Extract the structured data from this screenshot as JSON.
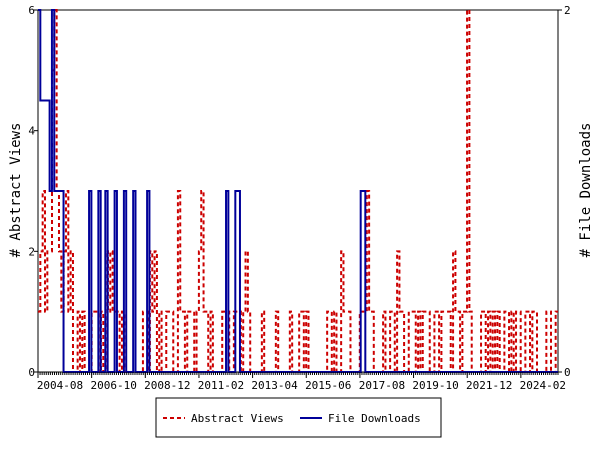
{
  "chart_data": {
    "type": "line",
    "ylabel_left": "# Abstract Views",
    "ylabel_right": "# File Downloads",
    "x_tick_labels": [
      "2004-08",
      "2006-10",
      "2008-12",
      "2011-02",
      "2013-04",
      "2015-06",
      "2017-08",
      "2019-10",
      "2021-12",
      "2024-02"
    ],
    "x_range": [
      "2004-08",
      "2025-08"
    ],
    "ylim_left": [
      0,
      6
    ],
    "yticks_left": [
      "0",
      "2",
      "4",
      "6"
    ],
    "ylim_right": [
      0,
      2
    ],
    "yticks_right": [
      "0",
      "2"
    ],
    "grid": false,
    "legend_position": "bottom-center",
    "series": [
      {
        "name": "Abstract Views",
        "axis": "left",
        "color": "#cc0000",
        "style": "dashed",
        "values": [
          1,
          2,
          3,
          1,
          2,
          2,
          5,
          6,
          3,
          2,
          1,
          2,
          3,
          1,
          2,
          0,
          0,
          1,
          0,
          1,
          0,
          0,
          0,
          1,
          1,
          1,
          0,
          1,
          0,
          2,
          1,
          2,
          1,
          1,
          1,
          0,
          1,
          0,
          0,
          0,
          0,
          0,
          0,
          0,
          0,
          1,
          1,
          0,
          2,
          1,
          2,
          0,
          1,
          0,
          0,
          1,
          1,
          1,
          0,
          0,
          3,
          1,
          1,
          0,
          1,
          1,
          1,
          0,
          1,
          2,
          3,
          1,
          1,
          0,
          1,
          0,
          0,
          0,
          0,
          1,
          1,
          1,
          0,
          0,
          1,
          1,
          1,
          0,
          1,
          2,
          1,
          0,
          0,
          0,
          0,
          0,
          1,
          0,
          0,
          0,
          0,
          0,
          1,
          0,
          0,
          0,
          0,
          0,
          1,
          0,
          0,
          0,
          1,
          1,
          0,
          1,
          0,
          0,
          0,
          0,
          0,
          0,
          0,
          0,
          1,
          1,
          0,
          1,
          0,
          0,
          2,
          1,
          1,
          1,
          0,
          0,
          0,
          0,
          1,
          1,
          1,
          3,
          1,
          1,
          0,
          0,
          0,
          0,
          1,
          0,
          0,
          1,
          1,
          0,
          2,
          1,
          1,
          0,
          0,
          1,
          1,
          1,
          0,
          1,
          0,
          1,
          1,
          1,
          0,
          0,
          1,
          1,
          0,
          1,
          1,
          1,
          1,
          0,
          2,
          1,
          1,
          0,
          1,
          1,
          6,
          1,
          0,
          0,
          0,
          0,
          1,
          1,
          0,
          1,
          0,
          1,
          0,
          1,
          0,
          0,
          1,
          1,
          0,
          1,
          0,
          1,
          1,
          0,
          0,
          1,
          1,
          0,
          1,
          1,
          0,
          0,
          0,
          0,
          1,
          1,
          0,
          0,
          1
        ]
      },
      {
        "name": "File Downloads",
        "axis": "right",
        "color": "#000099",
        "style": "solid",
        "values": [
          2,
          1.5,
          1.5,
          1.5,
          1.5,
          1,
          2,
          1,
          1,
          1,
          1,
          0,
          0,
          0,
          0,
          0,
          0,
          0,
          0,
          0,
          0,
          0,
          1,
          0,
          0,
          0,
          1,
          0,
          0,
          1,
          0,
          0,
          0,
          1,
          0,
          0,
          0,
          1,
          0,
          0,
          0,
          1,
          0,
          0,
          0,
          0,
          0,
          1,
          0,
          0,
          0,
          0,
          0,
          0,
          0,
          0,
          0,
          0,
          0,
          0,
          0,
          0,
          0,
          0,
          0,
          0,
          0,
          0,
          0,
          0,
          0,
          0,
          0,
          0,
          0,
          0,
          0,
          0,
          0,
          0,
          0,
          1,
          0,
          0,
          0,
          1,
          1,
          0,
          0,
          0,
          0,
          0,
          0,
          0,
          0,
          0,
          0,
          0,
          0,
          0,
          0,
          0,
          0,
          0,
          0,
          0,
          0,
          0,
          0,
          0,
          0,
          0,
          0,
          0,
          0,
          0,
          0,
          0,
          0,
          0,
          0,
          0,
          0,
          0,
          0,
          0,
          0,
          0,
          0,
          0,
          0,
          0,
          0,
          0,
          0,
          0,
          0,
          0,
          0,
          1,
          1,
          0,
          0,
          0,
          0,
          0,
          0,
          0,
          0,
          0,
          0,
          0,
          0,
          0,
          0,
          0,
          0,
          0,
          0,
          0,
          0,
          0,
          0,
          0,
          0,
          0,
          0,
          0,
          0,
          0,
          0,
          0,
          0,
          0,
          0,
          0,
          0,
          0,
          0,
          0,
          0,
          0,
          0,
          0,
          0,
          0,
          0,
          0,
          0,
          0,
          0,
          0,
          0,
          0,
          0,
          0,
          0,
          0,
          0,
          0,
          0,
          0,
          0,
          0,
          0,
          0,
          0,
          0,
          0,
          0,
          0,
          0,
          0,
          0,
          0,
          0,
          0,
          0,
          0,
          0,
          0,
          0,
          0,
          0
        ]
      }
    ]
  }
}
